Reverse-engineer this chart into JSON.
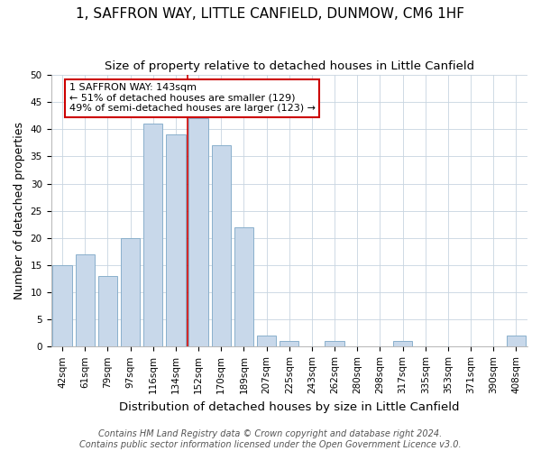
{
  "title": "1, SAFFRON WAY, LITTLE CANFIELD, DUNMOW, CM6 1HF",
  "subtitle": "Size of property relative to detached houses in Little Canfield",
  "xlabel": "Distribution of detached houses by size in Little Canfield",
  "ylabel": "Number of detached properties",
  "bar_labels": [
    "42sqm",
    "61sqm",
    "79sqm",
    "97sqm",
    "116sqm",
    "134sqm",
    "152sqm",
    "170sqm",
    "189sqm",
    "207sqm",
    "225sqm",
    "243sqm",
    "262sqm",
    "280sqm",
    "298sqm",
    "317sqm",
    "335sqm",
    "353sqm",
    "371sqm",
    "390sqm",
    "408sqm"
  ],
  "bar_values": [
    15,
    17,
    13,
    20,
    41,
    39,
    42,
    37,
    22,
    2,
    1,
    0,
    1,
    0,
    0,
    1,
    0,
    0,
    0,
    0,
    2
  ],
  "bar_color": "#c8d8ea",
  "bar_edge_color": "#8ab0cc",
  "grid_color": "#c8d4e0",
  "vline_color": "#cc0000",
  "annotation_title": "1 SAFFRON WAY: 143sqm",
  "annotation_line1": "← 51% of detached houses are smaller (129)",
  "annotation_line2": "49% of semi-detached houses are larger (123) →",
  "annotation_box_color": "#ffffff",
  "annotation_box_edge": "#cc0000",
  "footer1": "Contains HM Land Registry data © Crown copyright and database right 2024.",
  "footer2": "Contains public sector information licensed under the Open Government Licence v3.0.",
  "ylim": [
    0,
    50
  ],
  "title_fontsize": 11,
  "subtitle_fontsize": 9.5,
  "xlabel_fontsize": 9.5,
  "ylabel_fontsize": 9,
  "tick_fontsize": 7.5,
  "annotation_fontsize": 8,
  "footer_fontsize": 7,
  "background_color": "#ffffff"
}
